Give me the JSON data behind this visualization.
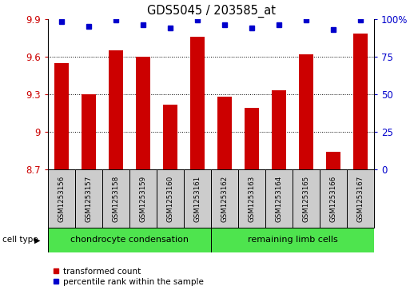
{
  "title": "GDS5045 / 203585_at",
  "samples": [
    "GSM1253156",
    "GSM1253157",
    "GSM1253158",
    "GSM1253159",
    "GSM1253160",
    "GSM1253161",
    "GSM1253162",
    "GSM1253163",
    "GSM1253164",
    "GSM1253165",
    "GSM1253166",
    "GSM1253167"
  ],
  "red_values": [
    9.55,
    9.3,
    9.65,
    9.6,
    9.22,
    9.76,
    9.28,
    9.19,
    9.33,
    9.62,
    8.84,
    9.78
  ],
  "blue_values": [
    98,
    95,
    99,
    96,
    94,
    99,
    96,
    94,
    96,
    99,
    93,
    99
  ],
  "y_min": 8.7,
  "y_max": 9.9,
  "y_ticks": [
    8.7,
    9.0,
    9.3,
    9.6,
    9.9
  ],
  "y_tick_labels": [
    "8.7",
    "9",
    "9.3",
    "9.6",
    "9.9"
  ],
  "y2_ticks": [
    0,
    25,
    50,
    75,
    100
  ],
  "y2_tick_labels": [
    "0",
    "25",
    "50",
    "75",
    "100%"
  ],
  "grid_lines": [
    9.0,
    9.3,
    9.6
  ],
  "cell_type_groups": [
    {
      "label": "chondrocyte condensation",
      "start": 0,
      "end": 5,
      "color": "#4EE44E"
    },
    {
      "label": "remaining limb cells",
      "start": 6,
      "end": 11,
      "color": "#4EE44E"
    }
  ],
  "bar_color": "#CC0000",
  "dot_color": "#0000CC",
  "sample_box_color": "#CCCCCC",
  "bar_width": 0.55,
  "baseline": 8.7,
  "cell_type_label": "cell type",
  "legend_red": "transformed count",
  "legend_blue": "percentile rank within the sample"
}
